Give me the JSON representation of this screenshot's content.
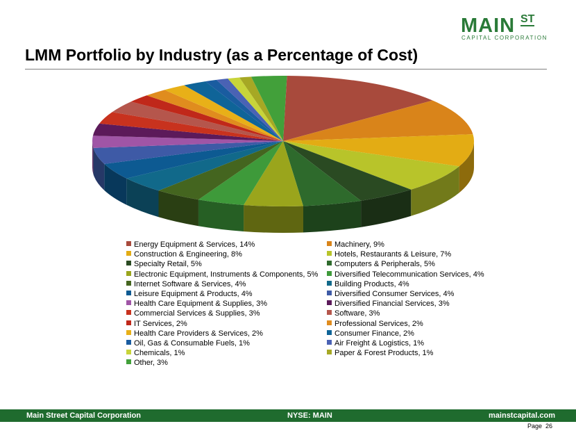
{
  "header": {
    "logo_main": "MAIN",
    "logo_st": "ST",
    "logo_sub": "CAPITAL CORPORATION",
    "title": "LMM Portfolio by Industry (as a Percentage of Cost)"
  },
  "chart_data": {
    "type": "pie",
    "title": "",
    "legend_position": "bottom",
    "slices": [
      {
        "label": "Energy Equipment & Services, 14%",
        "name": "Energy Equipment & Services",
        "value": 14,
        "color": "#a84a3c"
      },
      {
        "label": "Machinery, 9%",
        "name": "Machinery",
        "value": 9,
        "color": "#d9841a"
      },
      {
        "label": "Construction & Engineering, 8%",
        "name": "Construction & Engineering",
        "value": 8,
        "color": "#e3ac14"
      },
      {
        "label": "Hotels, Restaurants & Leisure, 7%",
        "name": "Hotels, Restaurants & Leisure",
        "value": 7,
        "color": "#b8c42a"
      },
      {
        "label": "Specialty Retail, 5%",
        "name": "Specialty Retail",
        "value": 5,
        "color": "#2a4a22"
      },
      {
        "label": "Computers & Peripherals, 5%",
        "name": "Computers & Peripherals",
        "value": 5,
        "color": "#2e6a2c"
      },
      {
        "label": "Electronic Equipment, Instruments & Components, 5%",
        "name": "Electronic Equipment, Instruments & Components",
        "value": 5,
        "color": "#9aa51c"
      },
      {
        "label": "Diversified Telecommunication Services, 4%",
        "name": "Diversified Telecommunication Services",
        "value": 4,
        "color": "#3e9a3a"
      },
      {
        "label": "Internet Software & Services, 4%",
        "name": "Internet Software & Services",
        "value": 4,
        "color": "#44651f"
      },
      {
        "label": "Building Products, 4%",
        "name": "Building Products",
        "value": 4,
        "color": "#11698a"
      },
      {
        "label": "Leisure Equipment & Products, 4%",
        "name": "Leisure Equipment & Products",
        "value": 4,
        "color": "#0d5a92"
      },
      {
        "label": "Diversified Consumer Services, 4%",
        "name": "Diversified Consumer Services",
        "value": 4,
        "color": "#3e5aa6"
      },
      {
        "label": "Health Care Equipment & Supplies, 3%",
        "name": "Health Care Equipment & Supplies",
        "value": 3,
        "color": "#a055a6"
      },
      {
        "label": "Diversified Financial Services, 3%",
        "name": "Diversified Financial Services",
        "value": 3,
        "color": "#5c1a5a"
      },
      {
        "label": "Commercial Services & Supplies, 3%",
        "name": "Commercial Services & Supplies",
        "value": 3,
        "color": "#c8321e"
      },
      {
        "label": "Software, 3%",
        "name": "Software",
        "value": 3,
        "color": "#b5564c"
      },
      {
        "label": "IT Services, 2%",
        "name": "IT Services",
        "value": 2,
        "color": "#c0281a"
      },
      {
        "label": "Professional Services, 2%",
        "name": "Professional Services",
        "value": 2,
        "color": "#e08c1e"
      },
      {
        "label": "Health Care Providers & Services, 2%",
        "name": "Health Care Providers & Services",
        "value": 2,
        "color": "#e8b018"
      },
      {
        "label": "Consumer Finance, 2%",
        "name": "Consumer Finance",
        "value": 2,
        "color": "#0f6498"
      },
      {
        "label": "Oil, Gas & Consumable Fuels, 1%",
        "name": "Oil, Gas & Consumable Fuels",
        "value": 1,
        "color": "#1a5ca0"
      },
      {
        "label": "Air Freight & Logistics, 1%",
        "name": "Air Freight & Logistics",
        "value": 1,
        "color": "#4a62b4"
      },
      {
        "label": "Chemicals, 1%",
        "name": "Chemicals",
        "value": 1,
        "color": "#c8d43a"
      },
      {
        "label": "Paper & Forest Products, 1%",
        "name": "Paper & Forest Products",
        "value": 1,
        "color": "#a6a824"
      },
      {
        "label": "Other, 3%",
        "name": "Other",
        "value": 3,
        "color": "#42a03a"
      }
    ]
  },
  "footer": {
    "company": "Main Street Capital Corporation",
    "ticker": "NYSE: MAIN",
    "website": "mainstcapital.com",
    "page_label": "Page",
    "page_number": "26"
  }
}
